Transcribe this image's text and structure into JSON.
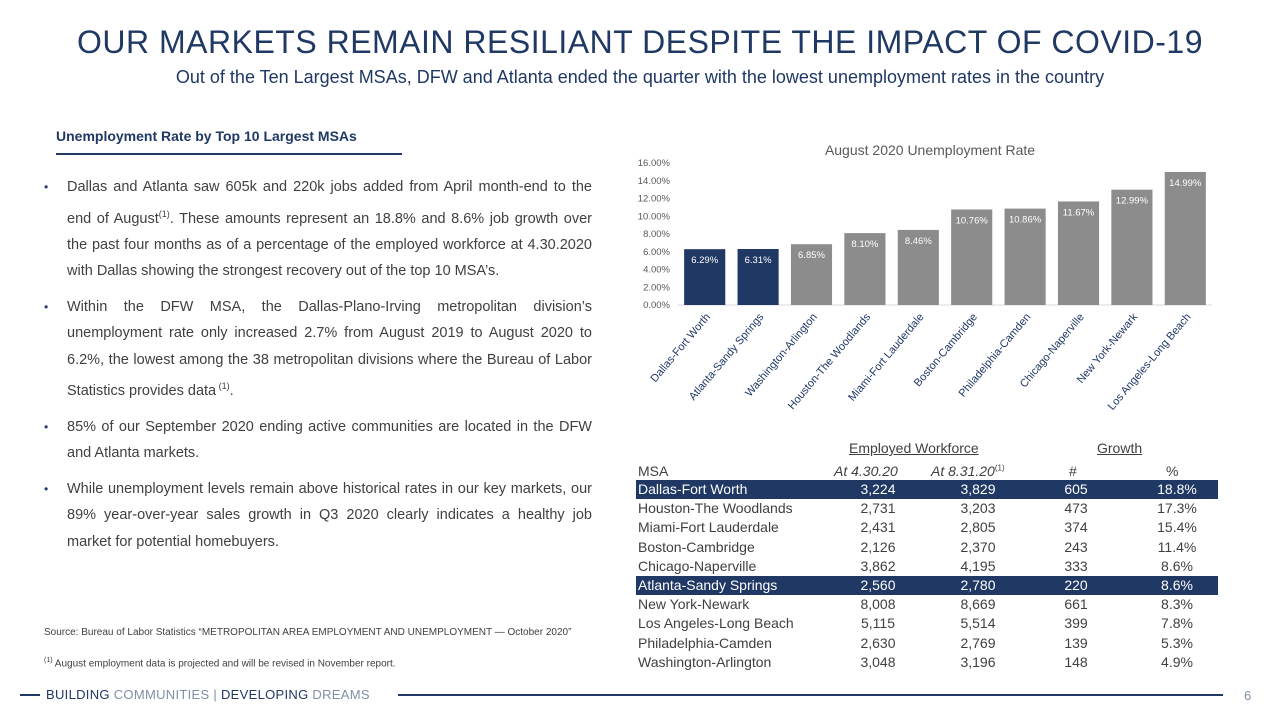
{
  "header": {
    "title": "OUR MARKETS REMAIN RESILIANT DESPITE THE IMPACT OF COVID-19",
    "subtitle": "Out of the Ten Largest MSAs, DFW and Atlanta ended the quarter with the lowest unemployment rates in the country"
  },
  "left": {
    "section_title": "Unemployment Rate by Top 10 Largest MSAs",
    "bullet_glyph": "•",
    "b1_pre": "Dallas and Atlanta saw 605k and 220k jobs added from April month-end to the end of August",
    "b1_sup": "(1)",
    "b1_post": ". These amounts represent an 18.8% and 8.6% job growth over the past four months as of a percentage of the employed workforce at 4.30.2020 with Dallas showing the strongest recovery out of the top 10 MSA’s.",
    "b2_pre": "Within the DFW MSA, the Dallas-Plano-Irving metropolitan division’s unemployment rate only increased 2.7% from August 2019 to August 2020 to 6.2%, the lowest among the 38 metropolitan divisions where the Bureau of Labor Statistics provides data",
    "b2_sup": " (1)",
    "b2_post": ".",
    "b3": "85% of our September 2020 ending active communities are located in the DFW and Atlanta markets.",
    "b4": "While unemployment levels remain above historical rates in our key markets, our 89% year-over-year sales growth in Q3 2020 clearly indicates a healthy job market for potential homebuyers.",
    "source": "Source: Bureau of Labor Statistics “METROPOLITAN AREA EMPLOYMENT AND UNEMPLOYMENT — October 2020”",
    "footnote_sup": "(1)",
    "footnote_text": " August employment data is projected and will be revised in November report."
  },
  "chart_data": {
    "type": "bar",
    "title": "August 2020 Unemployment Rate",
    "categories": [
      "Dallas-Fort Worth",
      "Atlanta-Sandy Springs",
      "Washington-Arlington",
      "Houston-The Woodlands",
      "Miami-Fort Lauderdale",
      "Boston-Cambridge",
      "Philadelphia-Camden",
      "Chicago-Naperville",
      "New York-Newark",
      "Los Angeles-Long Beach"
    ],
    "values": [
      6.29,
      6.31,
      6.85,
      8.1,
      8.46,
      10.76,
      10.86,
      11.67,
      12.99,
      14.99
    ],
    "data_labels": [
      "6.29%",
      "6.31%",
      "6.85%",
      "8.10%",
      "8.46%",
      "10.76%",
      "10.86%",
      "11.67%",
      "12.99%",
      "14.99%"
    ],
    "highlight_indices": [
      0,
      1
    ],
    "ylim": [
      0,
      16
    ],
    "yticks": [
      "0.00%",
      "2.00%",
      "4.00%",
      "6.00%",
      "8.00%",
      "10.00%",
      "12.00%",
      "14.00%",
      "16.00%"
    ],
    "grid": false,
    "colors": {
      "highlight": "#1f3864",
      "other": "#8c8c8c",
      "label_on_dark": "#ffffff",
      "label_on_gray": "#ffffff"
    }
  },
  "table": {
    "employed_header": "Employed Workforce",
    "growth_header": "Growth",
    "col_msa": "MSA",
    "col_a": "At 4.30.20",
    "col_b": "At 8.31.20",
    "col_b_sup": "(1)",
    "col_n": "#",
    "col_p": "%",
    "rows": [
      {
        "msa": "Dallas-Fort Worth",
        "a": "3,224",
        "b": "3,829",
        "n": "605",
        "p": "18.8%",
        "highlight": true
      },
      {
        "msa": "Houston-The Woodlands",
        "a": "2,731",
        "b": "3,203",
        "n": "473",
        "p": "17.3%",
        "highlight": false
      },
      {
        "msa": "Miami-Fort Lauderdale",
        "a": "2,431",
        "b": "2,805",
        "n": "374",
        "p": "15.4%",
        "highlight": false
      },
      {
        "msa": "Boston-Cambridge",
        "a": "2,126",
        "b": "2,370",
        "n": "243",
        "p": "11.4%",
        "highlight": false
      },
      {
        "msa": "Chicago-Naperville",
        "a": "3,862",
        "b": "4,195",
        "n": "333",
        "p": "8.6%",
        "highlight": false
      },
      {
        "msa": "Atlanta-Sandy Springs",
        "a": "2,560",
        "b": "2,780",
        "n": "220",
        "p": "8.6%",
        "highlight": true
      },
      {
        "msa": "New York-Newark",
        "a": "8,008",
        "b": "8,669",
        "n": "661",
        "p": "8.3%",
        "highlight": false
      },
      {
        "msa": "Los Angeles-Long Beach",
        "a": "5,115",
        "b": "5,514",
        "n": "399",
        "p": "7.8%",
        "highlight": false
      },
      {
        "msa": "Philadelphia-Camden",
        "a": "2,630",
        "b": "2,769",
        "n": "139",
        "p": "5.3%",
        "highlight": false
      },
      {
        "msa": "Washington-Arlington",
        "a": "3,048",
        "b": "3,196",
        "n": "148",
        "p": "4.9%",
        "highlight": false
      }
    ]
  },
  "footer": {
    "building": "BUILDING",
    "communities": " COMMUNITIES",
    "separator": " | ",
    "developing": "DEVELOPING",
    "dreams": " DREAMS",
    "page_number": "6"
  }
}
